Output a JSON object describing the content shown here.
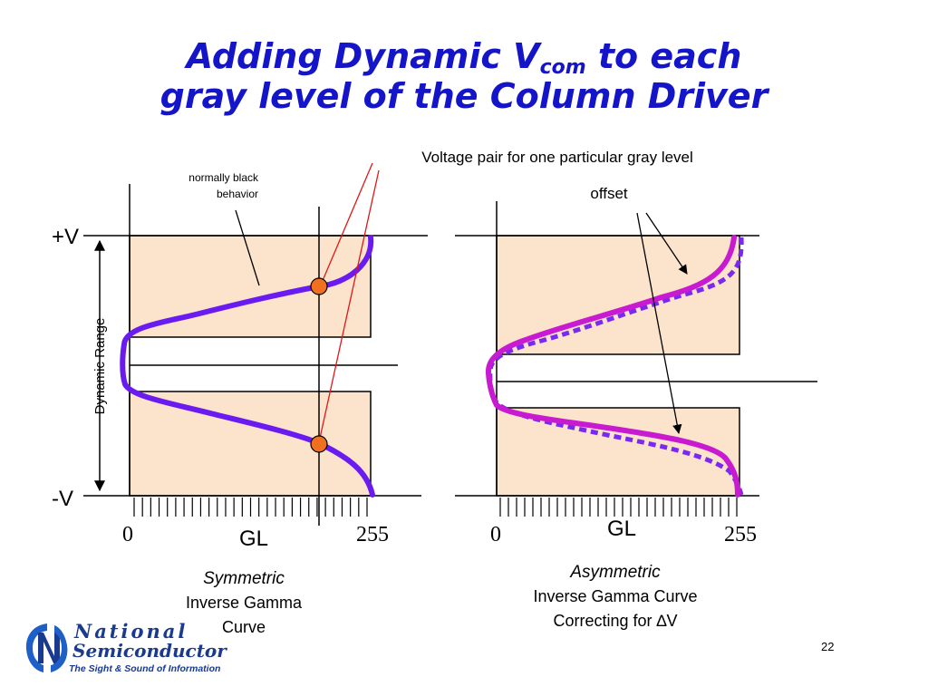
{
  "title": {
    "line1_before": "Adding Dynamic V",
    "line1_sub": "com",
    "line1_after": " to each",
    "line2": "gray level of the Column Driver"
  },
  "annotations": {
    "voltage_pair": "Voltage pair for one particular gray level",
    "offset": "offset",
    "normally_black_1": "normally black",
    "normally_black_2": "behavior"
  },
  "axes": {
    "plus_v": "+V",
    "minus_v": "-V",
    "dynamic_range": "Dynamic Range",
    "left_x_min": "0",
    "left_x_label": "GL",
    "left_x_max": "255",
    "right_x_min": "0",
    "right_x_label": "GL",
    "right_x_max": "255"
  },
  "captions": {
    "left_italic": "Symmetric",
    "left_line2": "Inverse Gamma",
    "left_line3": "Curve",
    "right_italic": "Asymmetric",
    "right_line2": "Inverse Gamma Curve",
    "right_line3_prefix": "Correcting for ",
    "right_line3_symbol": "∆V"
  },
  "logo": {
    "word1": "National",
    "word2": "Semiconductor",
    "tagline": "The Sight & Sound of Information"
  },
  "page_number": "22",
  "colors": {
    "title": "#1414c8",
    "box_fill": "#fce3cc",
    "curve_symmetric": "#6a1cf0",
    "curve_asym_solid": "#c81ad0",
    "curve_asym_dotted": "#7a2af0",
    "marker": "#f07020",
    "pointer_line": "#e01818",
    "logo_blue": "#1a3a8f"
  }
}
